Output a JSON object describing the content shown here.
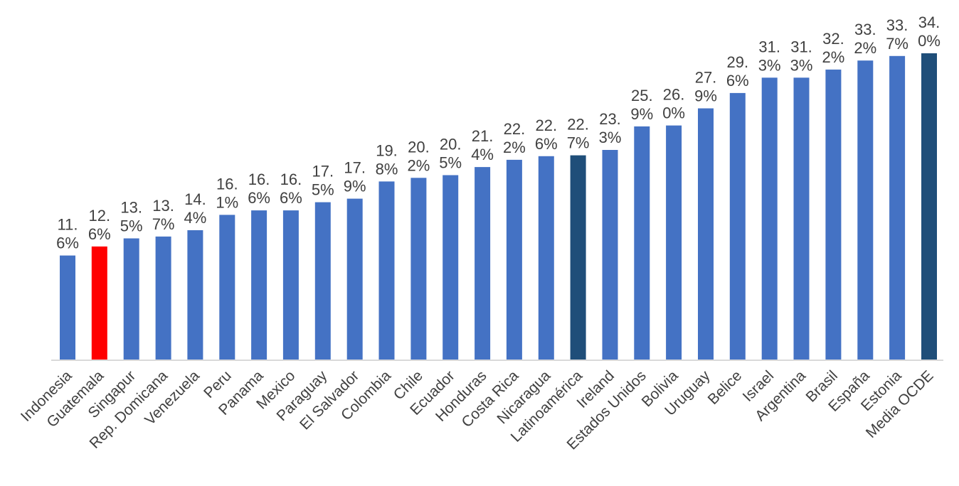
{
  "chart_data": {
    "type": "bar",
    "title": "",
    "xlabel": "",
    "ylabel": "",
    "ylim": [
      0,
      34
    ],
    "grid": false,
    "legend": "none",
    "categories": [
      "Indonesia",
      "Guatemala",
      "Singapur",
      "Rep. Domicana",
      "Venezuela",
      "Peru",
      "Panama",
      "Mexico",
      "Paraguay",
      "El Salvador",
      "Colombia",
      "Chile",
      "Ecuador",
      "Honduras",
      "Costa Rica",
      "Nicaragua",
      "Latinoamérica",
      "Ireland",
      "Estados Unidos",
      "Bolivia",
      "Uruguay",
      "Belice",
      "Israel",
      "Argentina",
      "Brasil",
      "España",
      "Estonia",
      "Media OCDE"
    ],
    "values": [
      11.6,
      12.6,
      13.5,
      13.7,
      14.4,
      16.1,
      16.6,
      16.6,
      17.5,
      17.9,
      19.8,
      20.2,
      20.5,
      21.4,
      22.2,
      22.6,
      22.7,
      23.3,
      25.9,
      26.0,
      27.9,
      29.6,
      31.3,
      31.3,
      32.2,
      33.2,
      33.7,
      34.0
    ],
    "value_labels": [
      [
        "11.",
        "6%"
      ],
      [
        "12.",
        "6%"
      ],
      [
        "13.",
        "5%"
      ],
      [
        "13.",
        "7%"
      ],
      [
        "14.",
        "4%"
      ],
      [
        "16.",
        "1%"
      ],
      [
        "16.",
        "6%"
      ],
      [
        "16.",
        "6%"
      ],
      [
        "17.",
        "5%"
      ],
      [
        "17.",
        "9%"
      ],
      [
        "19.",
        "8%"
      ],
      [
        "20.",
        "2%"
      ],
      [
        "20.",
        "5%"
      ],
      [
        "21.",
        "4%"
      ],
      [
        "22.",
        "2%"
      ],
      [
        "22.",
        "6%"
      ],
      [
        "22.",
        "7%"
      ],
      [
        "23.",
        "3%"
      ],
      [
        "25.",
        "9%"
      ],
      [
        "26.",
        "0%"
      ],
      [
        "27.",
        "9%"
      ],
      [
        "29.",
        "6%"
      ],
      [
        "31.",
        "3%"
      ],
      [
        "31.",
        "3%"
      ],
      [
        "32.",
        "2%"
      ],
      [
        "33.",
        "2%"
      ],
      [
        "33.",
        "7%"
      ],
      [
        "34.",
        "0%"
      ]
    ],
    "colors": {
      "default": "#4472C4",
      "highlight": "#FF0000",
      "aggregate": "#1F4E79",
      "axis": "#D9D9D9",
      "text": "#404040"
    },
    "bar_colors": [
      "default",
      "highlight",
      "default",
      "default",
      "default",
      "default",
      "default",
      "default",
      "default",
      "default",
      "default",
      "default",
      "default",
      "default",
      "default",
      "default",
      "aggregate",
      "default",
      "default",
      "default",
      "default",
      "default",
      "default",
      "default",
      "default",
      "default",
      "default",
      "aggregate"
    ]
  }
}
